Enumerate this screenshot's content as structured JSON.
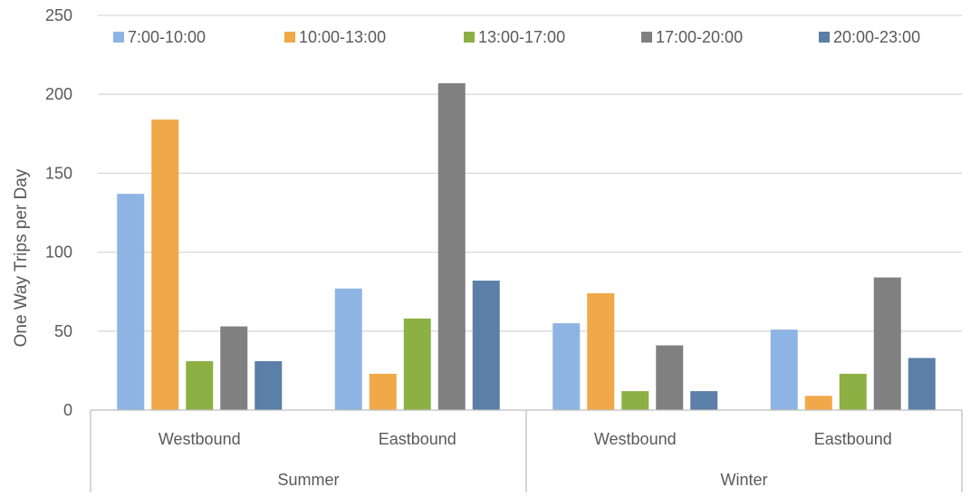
{
  "chart_data": {
    "type": "bar",
    "title": "",
    "ylabel": "One Way Trips per Day",
    "xlabel": "",
    "ylim": [
      0,
      250
    ],
    "yticks": [
      0,
      50,
      100,
      150,
      200,
      250
    ],
    "grid": true,
    "legend_position": "top",
    "groups": [
      {
        "label": "Summer",
        "categories": [
          "Westbound",
          "Eastbound"
        ]
      },
      {
        "label": "Winter",
        "categories": [
          "Westbound",
          "Eastbound"
        ]
      }
    ],
    "categories": [
      "Westbound",
      "Eastbound",
      "Westbound",
      "Eastbound"
    ],
    "series": [
      {
        "name": "7:00-10:00",
        "color": "#8EB4E3",
        "values": [
          137,
          77,
          55,
          51
        ]
      },
      {
        "name": "10:00-13:00",
        "color": "#F0A848",
        "values": [
          184,
          23,
          74,
          9
        ]
      },
      {
        "name": "13:00-17:00",
        "color": "#8DB045",
        "values": [
          31,
          58,
          12,
          23
        ]
      },
      {
        "name": "17:00-20:00",
        "color": "#808080",
        "values": [
          53,
          207,
          41,
          84
        ]
      },
      {
        "name": "20:00-23:00",
        "color": "#5B7FA6",
        "values": [
          31,
          82,
          12,
          33
        ]
      }
    ]
  }
}
